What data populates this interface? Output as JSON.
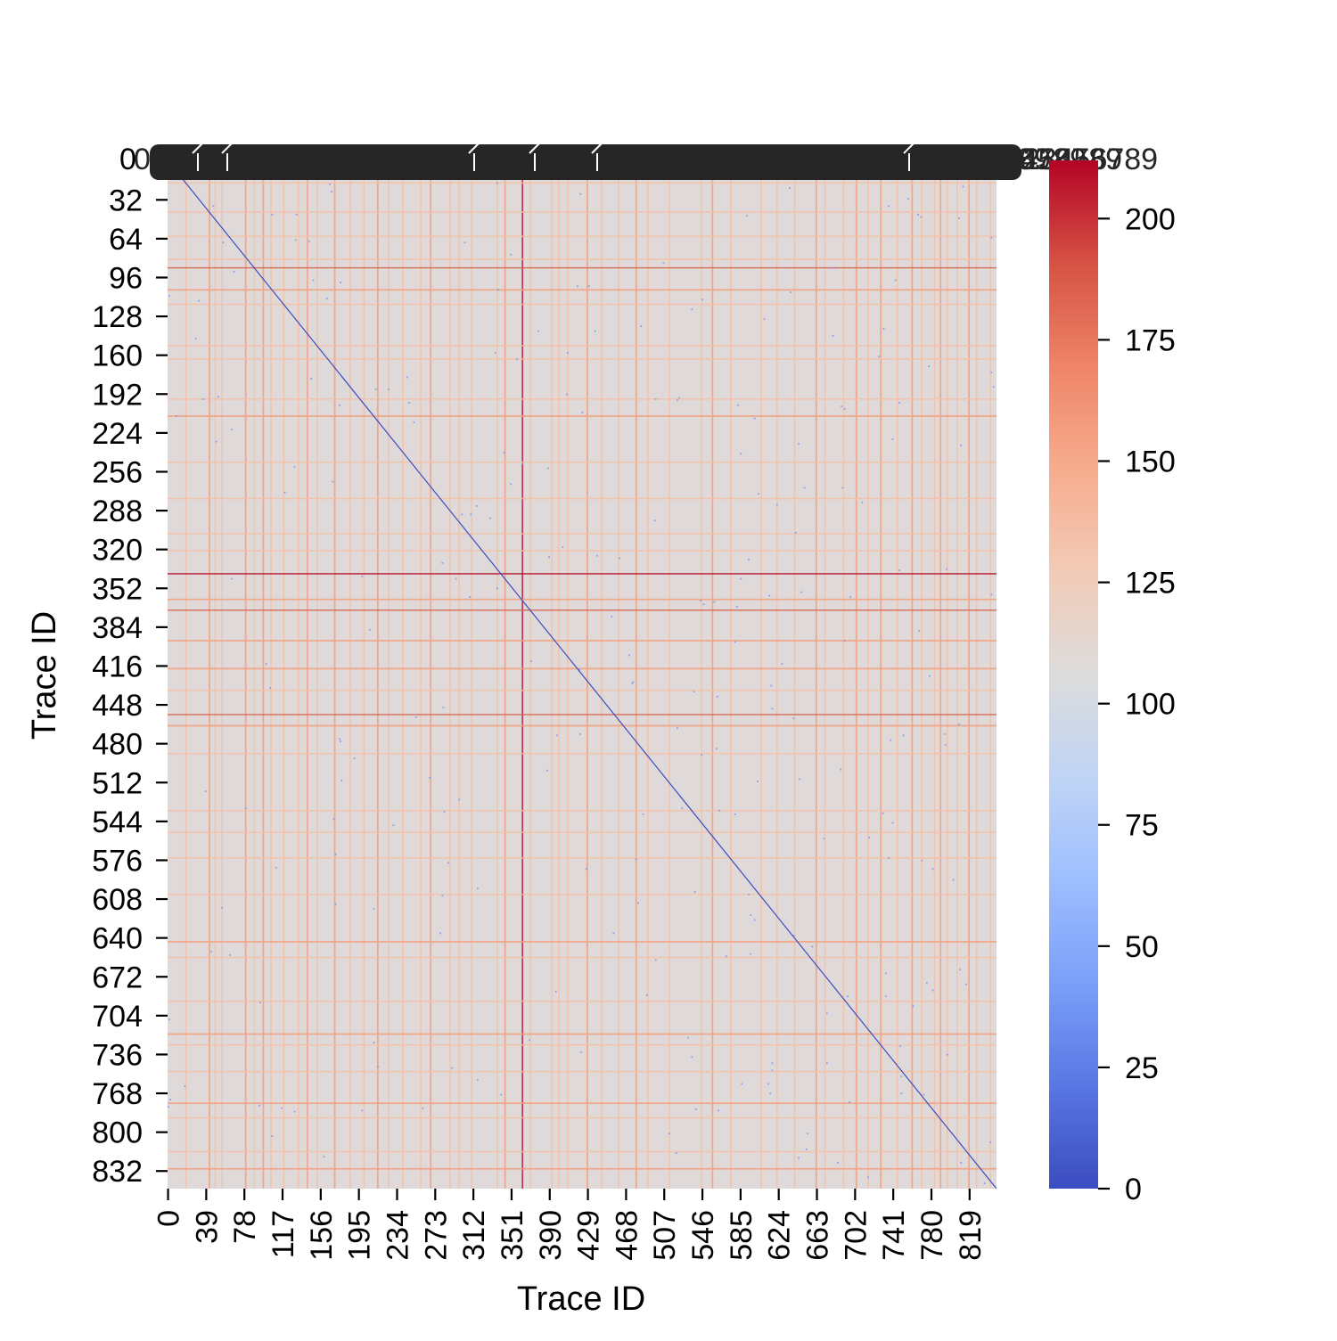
{
  "chart_data": {
    "type": "heatmap",
    "title": "",
    "xlabel": "Trace ID",
    "ylabel": "Trace ID",
    "n": 847,
    "x_tick_labels": [
      "0",
      "39",
      "78",
      "117",
      "156",
      "195",
      "234",
      "273",
      "312",
      "351",
      "390",
      "429",
      "468",
      "507",
      "546",
      "585",
      "624",
      "663",
      "702",
      "741",
      "780",
      "819"
    ],
    "y_tick_labels": [
      "0",
      "32",
      "64",
      "96",
      "128",
      "160",
      "192",
      "224",
      "256",
      "288",
      "320",
      "352",
      "384",
      "416",
      "448",
      "480",
      "512",
      "544",
      "576",
      "608",
      "640",
      "672",
      "704",
      "736",
      "768",
      "800",
      "832"
    ],
    "top_overlap_label": "0123456789",
    "value_range": [
      0,
      212
    ],
    "background_value": 108,
    "diagonal_value": 0,
    "colorbar": {
      "colormap": "coolwarm",
      "ticks": [
        0,
        25,
        50,
        75,
        100,
        125,
        150,
        175,
        200
      ],
      "tick_labels": [
        "0",
        "25",
        "50",
        "75",
        "100",
        "125",
        "150",
        "175",
        "200"
      ],
      "gradient": [
        "#3b4cc0",
        "#5977e3",
        "#7b9ff9",
        "#9ebeff",
        "#c0d4f5",
        "#dddcdc",
        "#f2cbb7",
        "#f7ac8e",
        "#ee8468",
        "#d65244",
        "#b40426"
      ]
    },
    "line_colors": {
      "light": "#f5c0a6",
      "medium": "#f2a283",
      "strong": "#d6604d",
      "dark": "#b40426",
      "blue_dot": "#6f92f3"
    },
    "vertical_line_traces": [
      [
        18,
        "light"
      ],
      [
        42,
        "medium"
      ],
      [
        48,
        "light"
      ],
      [
        55,
        "light"
      ],
      [
        79,
        "medium"
      ],
      [
        88,
        "light"
      ],
      [
        97,
        "medium"
      ],
      [
        105,
        "light"
      ],
      [
        118,
        "light"
      ],
      [
        133,
        "light"
      ],
      [
        142,
        "medium"
      ],
      [
        152,
        "light"
      ],
      [
        170,
        "medium"
      ],
      [
        186,
        "light"
      ],
      [
        200,
        "light"
      ],
      [
        214,
        "medium"
      ],
      [
        225,
        "light"
      ],
      [
        240,
        "light"
      ],
      [
        258,
        "light"
      ],
      [
        268,
        "medium"
      ],
      [
        288,
        "light"
      ],
      [
        297,
        "light"
      ],
      [
        310,
        "light"
      ],
      [
        336,
        "light"
      ],
      [
        344,
        "medium"
      ],
      [
        362,
        "dark"
      ],
      [
        370,
        "light"
      ],
      [
        392,
        "light"
      ],
      [
        399,
        "light"
      ],
      [
        408,
        "light"
      ],
      [
        428,
        "medium"
      ],
      [
        443,
        "light"
      ],
      [
        460,
        "light"
      ],
      [
        478,
        "medium"
      ],
      [
        490,
        "light"
      ],
      [
        512,
        "light"
      ],
      [
        545,
        "light"
      ],
      [
        556,
        "medium"
      ],
      [
        575,
        "light"
      ],
      [
        606,
        "light"
      ],
      [
        622,
        "light"
      ],
      [
        640,
        "light"
      ],
      [
        662,
        "medium"
      ],
      [
        671,
        "light"
      ],
      [
        690,
        "light"
      ],
      [
        703,
        "medium"
      ],
      [
        715,
        "light"
      ],
      [
        728,
        "medium"
      ],
      [
        745,
        "light"
      ],
      [
        760,
        "medium"
      ],
      [
        770,
        "light"
      ],
      [
        783,
        "light"
      ],
      [
        789,
        "medium"
      ],
      [
        796,
        "light"
      ],
      [
        806,
        "light"
      ],
      [
        818,
        "medium"
      ],
      [
        826,
        "light"
      ],
      [
        840,
        "light"
      ]
    ],
    "horizontal_line_traces": [
      [
        18,
        "light"
      ],
      [
        42,
        "light"
      ],
      [
        62,
        "light"
      ],
      [
        81,
        "light"
      ],
      [
        88,
        "strong"
      ],
      [
        106,
        "medium"
      ],
      [
        118,
        "light"
      ],
      [
        152,
        "light"
      ],
      [
        163,
        "light"
      ],
      [
        196,
        "light"
      ],
      [
        210,
        "medium"
      ],
      [
        248,
        "light"
      ],
      [
        278,
        "light"
      ],
      [
        307,
        "light"
      ],
      [
        321,
        "light"
      ],
      [
        340,
        "dark"
      ],
      [
        361,
        "medium"
      ],
      [
        370,
        "strong"
      ],
      [
        395,
        "medium"
      ],
      [
        418,
        "medium"
      ],
      [
        436,
        "light"
      ],
      [
        456,
        "strong"
      ],
      [
        465,
        "medium"
      ],
      [
        488,
        "light"
      ],
      [
        535,
        "light"
      ],
      [
        553,
        "light"
      ],
      [
        574,
        "light"
      ],
      [
        604,
        "light"
      ],
      [
        643,
        "medium"
      ],
      [
        656,
        "light"
      ],
      [
        692,
        "light"
      ],
      [
        719,
        "medium"
      ],
      [
        728,
        "light"
      ],
      [
        750,
        "light"
      ],
      [
        776,
        "medium"
      ],
      [
        788,
        "light"
      ],
      [
        816,
        "light"
      ],
      [
        830,
        "medium"
      ]
    ]
  }
}
